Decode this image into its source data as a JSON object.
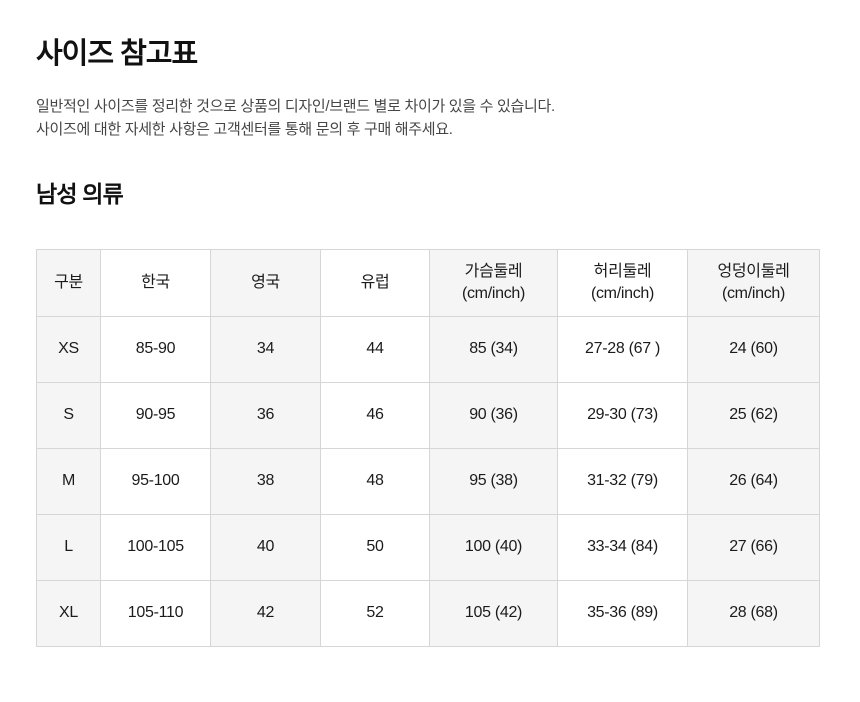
{
  "page": {
    "title": "사이즈 참고표",
    "description_line1": "일반적인 사이즈를 정리한 것으로 상품의 디자인/브랜드 별로 차이가 있을 수 있습니다.",
    "description_line2": "사이즈에 대한 자세한 사항은 고객센터를 통해 문의 후 구매 해주세요.",
    "section_title": "남성 의류"
  },
  "size_table": {
    "columns": [
      {
        "label": "구분",
        "sublabel": ""
      },
      {
        "label": "한국",
        "sublabel": ""
      },
      {
        "label": "영국",
        "sublabel": ""
      },
      {
        "label": "유럽",
        "sublabel": ""
      },
      {
        "label": "가슴둘레",
        "sublabel": "(cm/inch)"
      },
      {
        "label": "허리둘레",
        "sublabel": "(cm/inch)"
      },
      {
        "label": "엉덩이둘레",
        "sublabel": "(cm/inch)"
      }
    ],
    "rows": [
      [
        "XS",
        "85-90",
        "34",
        "44",
        "85 (34)",
        "27-28 (67 )",
        "24 (60)"
      ],
      [
        "S",
        "90-95",
        "36",
        "46",
        "90 (36)",
        "29-30 (73)",
        "25 (62)"
      ],
      [
        "M",
        "95-100",
        "38",
        "48",
        "95 (38)",
        "31-32 (79)",
        "26 (64)"
      ],
      [
        "L",
        "100-105",
        "40",
        "50",
        "100 (40)",
        "33-34 (84)",
        "27 (66)"
      ],
      [
        "XL",
        "105-110",
        "42",
        "52",
        "105 (42)",
        "35-36 (89)",
        "28 (68)"
      ]
    ],
    "colors": {
      "stripe_bg": "#f5f5f5",
      "cell_bg": "#ffffff",
      "border": "#d6d6d6",
      "text": "#1b1b1b"
    }
  }
}
